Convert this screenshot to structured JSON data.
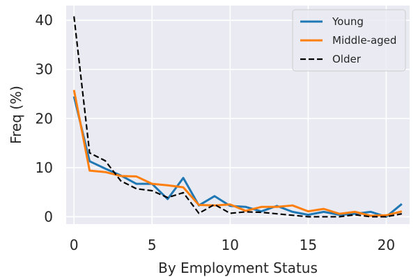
{
  "chart_data": {
    "type": "line",
    "xlabel": "By Employment Status",
    "ylabel": "Freq (%)",
    "xlim": [
      -0.5,
      21.5
    ],
    "ylim": [
      -1.5,
      43
    ],
    "xticks": [
      0,
      5,
      10,
      15,
      20
    ],
    "yticks": [
      0,
      10,
      20,
      30,
      40
    ],
    "grid": true,
    "legend_position": "top-right",
    "x": [
      0,
      1,
      2,
      3,
      4,
      5,
      6,
      7,
      8,
      9,
      10,
      11,
      12,
      13,
      14,
      15,
      16,
      17,
      18,
      19,
      20,
      21
    ],
    "series": [
      {
        "name": "Young",
        "color": "#1f77b4",
        "linestyle": "solid",
        "values": [
          24.5,
          11.3,
          9.8,
          8.4,
          6.7,
          6.7,
          3.6,
          7.9,
          2.3,
          4.2,
          2.2,
          2.0,
          1.1,
          2.2,
          1.0,
          0.4,
          1.0,
          0.4,
          0.6,
          1.0,
          0.0,
          2.6
        ]
      },
      {
        "name": "Middle-aged",
        "color": "#ff7f0e",
        "linestyle": "solid",
        "values": [
          25.8,
          9.4,
          9.1,
          8.3,
          8.2,
          6.7,
          6.4,
          6.0,
          2.4,
          2.3,
          2.5,
          1.2,
          2.0,
          2.0,
          2.3,
          1.1,
          1.6,
          0.6,
          1.0,
          0.2,
          0.3,
          1.1
        ]
      },
      {
        "name": "Older",
        "color": "#000000",
        "linestyle": "dashed",
        "values": [
          40.8,
          13.0,
          11.4,
          7.3,
          5.7,
          5.3,
          3.9,
          4.9,
          0.7,
          2.5,
          0.7,
          1.0,
          0.9,
          0.6,
          0.3,
          0.0,
          0.0,
          0.0,
          0.4,
          0.0,
          0.0,
          0.6
        ]
      }
    ]
  }
}
